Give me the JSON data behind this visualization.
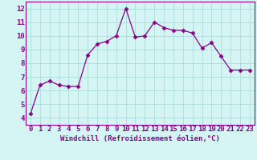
{
  "x": [
    0,
    1,
    2,
    3,
    4,
    5,
    6,
    7,
    8,
    9,
    10,
    11,
    12,
    13,
    14,
    15,
    16,
    17,
    18,
    19,
    20,
    21,
    22,
    23
  ],
  "y": [
    4.3,
    6.4,
    6.7,
    6.4,
    6.3,
    6.3,
    8.6,
    9.4,
    9.6,
    10.0,
    12.0,
    9.9,
    10.0,
    11.0,
    10.6,
    10.4,
    10.4,
    10.2,
    9.1,
    9.5,
    8.5,
    7.5,
    7.5,
    7.5
  ],
  "line_color": "#880088",
  "marker": "D",
  "marker_size": 2.5,
  "bg_color": "#d5f5f5",
  "grid_color": "#b0dede",
  "xlabel": "Windchill (Refroidissement éolien,°C)",
  "xlabel_fontsize": 6.5,
  "xtick_labels": [
    "0",
    "1",
    "2",
    "3",
    "4",
    "5",
    "6",
    "7",
    "8",
    "9",
    "10",
    "11",
    "12",
    "13",
    "14",
    "15",
    "16",
    "17",
    "18",
    "19",
    "20",
    "21",
    "22",
    "23"
  ],
  "ytick_labels": [
    "4",
    "5",
    "6",
    "7",
    "8",
    "9",
    "10",
    "11",
    "12"
  ],
  "yticks": [
    4,
    5,
    6,
    7,
    8,
    9,
    10,
    11,
    12
  ],
  "ylim": [
    3.5,
    12.5
  ],
  "xlim": [
    -0.5,
    23.5
  ],
  "tick_fontsize": 6.5,
  "spine_color": "#880088"
}
